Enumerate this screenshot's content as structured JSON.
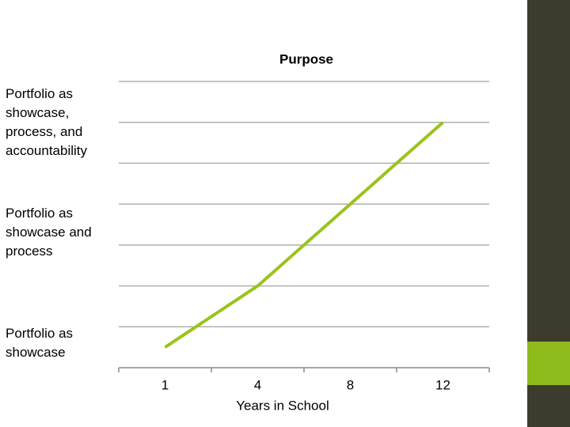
{
  "chart_data": {
    "type": "line",
    "title": "Purpose",
    "x_label": "Years in School",
    "categories": [
      "1",
      "4",
      "8",
      "12"
    ],
    "series": [
      {
        "name": "Purpose",
        "color": "#9ac31c",
        "values": [
          0.5,
          2,
          4,
          6
        ]
      }
    ],
    "ylim": [
      0,
      7
    ],
    "yticks": [
      {
        "value": 0.6,
        "label": "Portfolio as showcase"
      },
      {
        "value": 3.3,
        "label": "Portfolio as showcase and process"
      },
      {
        "value": 6,
        "label": "Portfolio as showcase, process, and accountability"
      }
    ],
    "ygrid": [
      1,
      2,
      3,
      4,
      5,
      6,
      7
    ],
    "grid": true
  }
}
